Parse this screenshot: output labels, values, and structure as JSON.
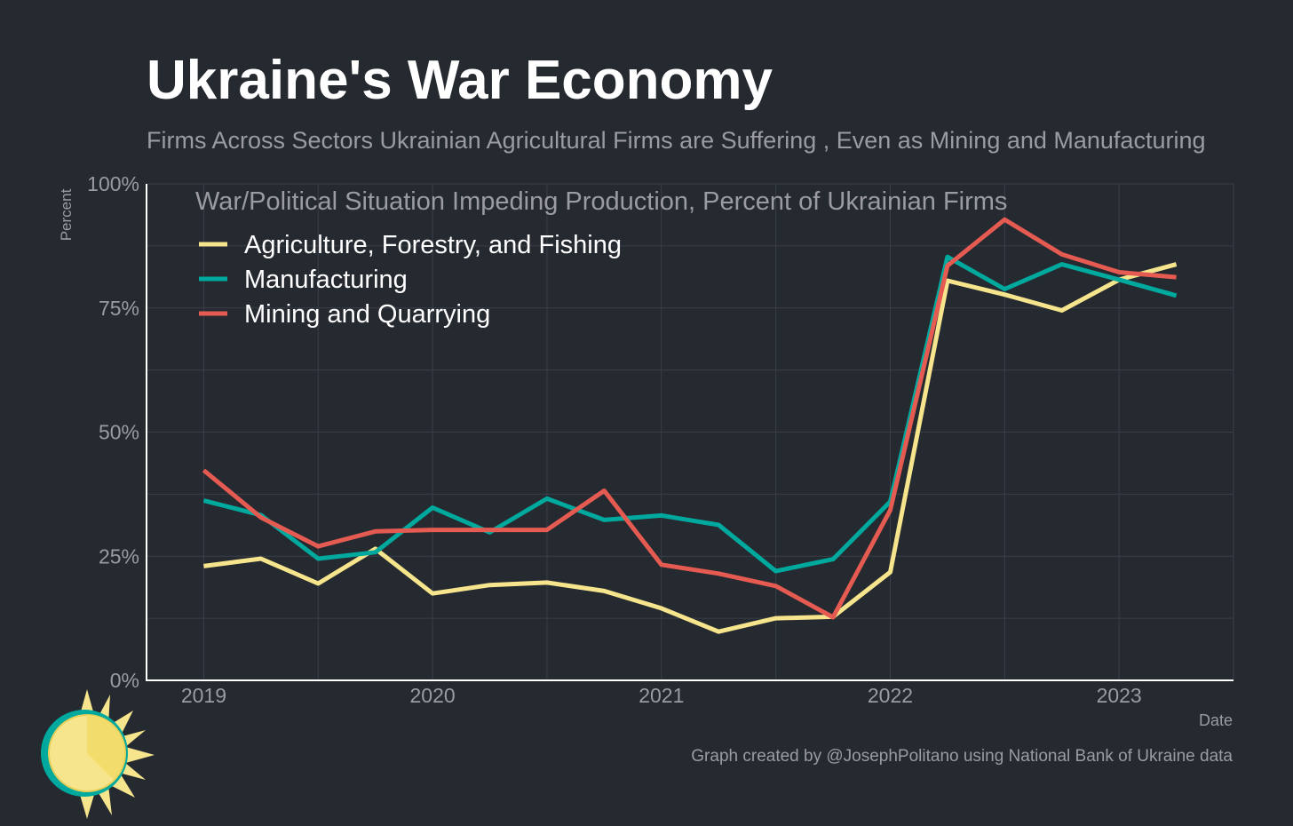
{
  "header": {
    "title": "Ukraine's War Economy",
    "subtitle": "Firms Across Sectors Ukrainian Agricultural Firms are Suffering , Even as Mining and Manufacturing"
  },
  "footer": {
    "caption": "Graph created by @JosephPolitano using National Bank of Ukraine data"
  },
  "colors": {
    "background": "#252930",
    "grid": "#3a3f48",
    "axis": "#ffffff",
    "muted_text": "#9a9ca2",
    "agriculture": "#f6e58d",
    "manufacturing": "#00a99d",
    "mining": "#e55b52"
  },
  "chart_data": {
    "type": "line",
    "title": "War/Political Situation Impeding Production, Percent of Ukrainian Firms",
    "xlabel": "Date",
    "ylabel": "Percent",
    "ylim": [
      0,
      100
    ],
    "yticks": [
      {
        "value": 0,
        "label": "0%"
      },
      {
        "value": 25,
        "label": "25%"
      },
      {
        "value": 50,
        "label": "50%"
      },
      {
        "value": 75,
        "label": "75%"
      },
      {
        "value": 100,
        "label": "100%"
      }
    ],
    "xlim": [
      "2018-10",
      "2023-07"
    ],
    "xticks": [
      {
        "value": "2019-01",
        "label": "2019"
      },
      {
        "value": "2020-01",
        "label": "2020"
      },
      {
        "value": "2021-01",
        "label": "2021"
      },
      {
        "value": "2022-01",
        "label": "2022"
      },
      {
        "value": "2023-01",
        "label": "2023"
      }
    ],
    "grid": true,
    "legend_position": "top-left",
    "x": [
      "2019-01",
      "2019-04",
      "2019-07",
      "2019-10",
      "2020-01",
      "2020-04",
      "2020-07",
      "2020-10",
      "2021-01",
      "2021-04",
      "2021-07",
      "2021-10",
      "2022-01",
      "2022-04",
      "2022-07",
      "2022-10",
      "2023-01",
      "2023-04"
    ],
    "series": [
      {
        "name": "Agriculture, Forestry, and Fishing",
        "color": "#f6e58d",
        "values": [
          23,
          24.5,
          19.5,
          26.5,
          17.5,
          19.2,
          19.7,
          18,
          14.5,
          9.8,
          12.5,
          12.8,
          21.8,
          80.5,
          77.7,
          74.5,
          80.7,
          83.8
        ]
      },
      {
        "name": "Manufacturing",
        "color": "#00a99d",
        "values": [
          36.2,
          33.3,
          24.5,
          25.8,
          34.8,
          29.8,
          36.6,
          32.3,
          33.2,
          31.3,
          22,
          24.4,
          36,
          85.3,
          78.8,
          83.8,
          80.7,
          77.5
        ]
      },
      {
        "name": "Mining and Quarrying",
        "color": "#e55b52",
        "values": [
          42.3,
          32.8,
          27,
          30,
          30.3,
          30.3,
          30.3,
          38.2,
          23.3,
          21.5,
          19,
          12.7,
          34.3,
          83.5,
          92.8,
          85.8,
          82.2,
          81.2
        ]
      }
    ]
  }
}
